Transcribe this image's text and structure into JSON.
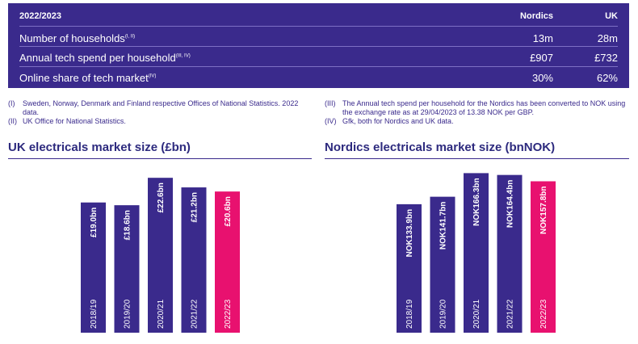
{
  "table": {
    "header": {
      "label": "2022/2023",
      "col1": "Nordics",
      "col2": "UK"
    },
    "rows": [
      {
        "label": "Number of households",
        "sup": "(I, II)",
        "col1": "13m",
        "col2": "28m"
      },
      {
        "label": "Annual tech spend per household",
        "sup": "(III, IV)",
        "col1": "£907",
        "col2": "£732"
      },
      {
        "label": "Online share of tech market",
        "sup": "(IV)",
        "col1": "30%",
        "col2": "62%"
      }
    ]
  },
  "notes": {
    "n1_num": "(I)",
    "n1_text": "Sweden, Norway, Denmark and Finland respective Offices of National Statistics. 2022 data.",
    "n2_num": "(II)",
    "n2_text": "UK Office for National Statistics.",
    "n3_num": "(III)",
    "n3_text": "The Annual tech spend per household for the Nordics has been converted to NOK using the exchange rate as at 29/04/2023 of 13.38 NOK per GBP.",
    "n4_num": "(IV)",
    "n4_text": "Gfk, both for Nordics and UK data."
  },
  "colors": {
    "navy": "#3a2a8c",
    "highlight": "#e8116f"
  },
  "chart_data": [
    {
      "type": "bar",
      "title": "UK electricals market size (£bn)",
      "categories": [
        "2018/19",
        "2019/20",
        "2020/21",
        "2021/22",
        "2022/23"
      ],
      "values": [
        19.0,
        18.6,
        22.6,
        21.2,
        20.6
      ],
      "data_labels": [
        "£19.0bn",
        "£18.6bn",
        "£22.6bn",
        "£21.2bn",
        "£20.6bn"
      ],
      "highlight_index": 4,
      "ylim": [
        0,
        23.8
      ]
    },
    {
      "type": "bar",
      "title": "Nordics electricals market size (bnNOK)",
      "categories": [
        "2018/19",
        "2019/20",
        "2020/21",
        "2021/22",
        "2022/23"
      ],
      "values": [
        133.9,
        141.7,
        166.3,
        164.4,
        157.8
      ],
      "data_labels": [
        "NOK133.9bn",
        "NOK141.7bn",
        "NOK166.3bn",
        "NOK164.4bn",
        "NOK157.8bn"
      ],
      "highlight_index": 4,
      "ylim": [
        0,
        170
      ]
    }
  ]
}
